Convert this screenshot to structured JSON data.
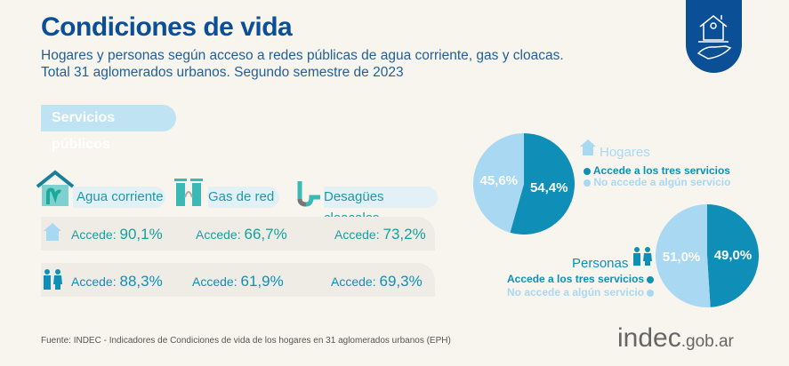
{
  "header": {
    "title": "Condiciones de vida",
    "subtitle_1": "Hogares y personas según acceso a redes públicas de agua corriente, gas y cloacas.",
    "subtitle_2": "Total 31 aglomerados urbanos. Segundo semestre de 2023",
    "badge_icon": "house-in-hand-icon"
  },
  "section": {
    "label": "Servicios públicos"
  },
  "services": [
    {
      "label": "Agua corriente",
      "icon": "water-house-icon"
    },
    {
      "label": "Gas de red",
      "icon": "gas-tank-icon"
    },
    {
      "label": "Desagües cloacales",
      "icon": "pipe-icon"
    }
  ],
  "rows": [
    {
      "icon": "house-icon",
      "prefix": "Accede:",
      "values": [
        "90,1%",
        "66,7%",
        "73,2%"
      ]
    },
    {
      "icon": "people-icon",
      "prefix": "Accede:",
      "values": [
        "88,3%",
        "61,9%",
        "69,3%"
      ]
    }
  ],
  "colors": {
    "accede": "#0f8fb8",
    "no_accede": "#a8d8f2",
    "title": "#0b4f96"
  },
  "chart_data": [
    {
      "type": "pie",
      "title": "Hogares",
      "categories": [
        "Accede a los tres servicios",
        "No accede a algún servicio"
      ],
      "values": [
        54.4,
        45.6
      ],
      "labels": [
        "54,4%",
        "45,6%"
      ]
    },
    {
      "type": "pie",
      "title": "Personas",
      "categories": [
        "Accede a los tres servicios",
        "No accede a algún servicio"
      ],
      "values": [
        49.0,
        51.0
      ],
      "labels": [
        "49,0%",
        "51,0%"
      ]
    }
  ],
  "footer": {
    "source": "Fuente: INDEC - Indicadores de Condiciones de vida de los hogares en 31 aglomerados urbanos (EPH)",
    "logo_main": "indec",
    "logo_suffix": ".gob.ar"
  }
}
